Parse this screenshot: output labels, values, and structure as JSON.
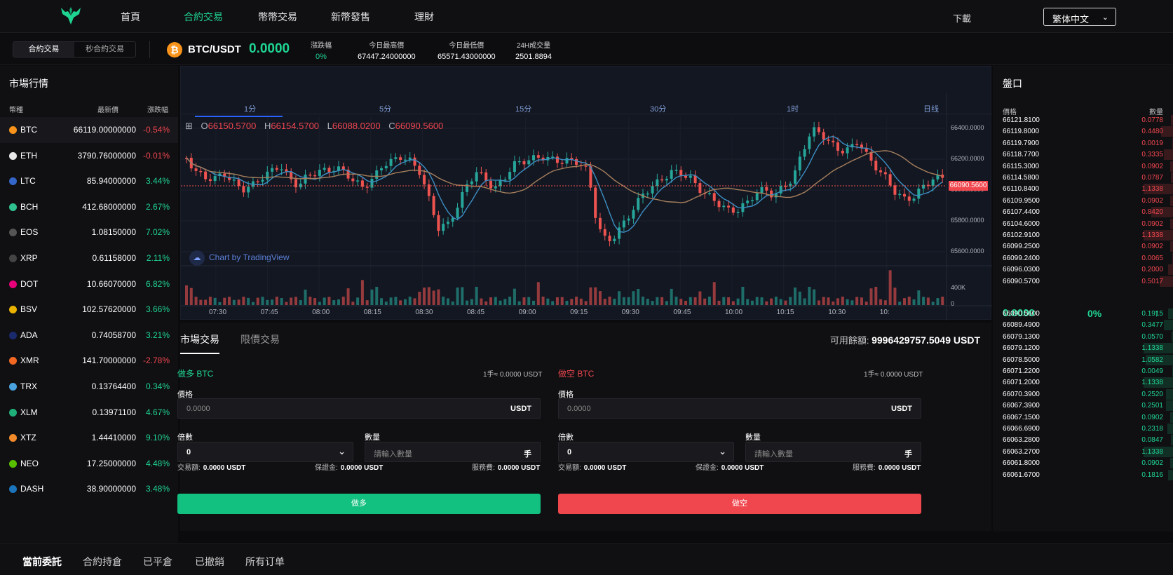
{
  "nav": {
    "items": [
      "首頁",
      "合約交易",
      "幣幣交易",
      "新幣發售",
      "理財"
    ],
    "active": 1,
    "download": "下載",
    "language": "繁体中文"
  },
  "ticker": {
    "modes": [
      "合約交易",
      "秒合約交易"
    ],
    "pair": "BTC/USDT",
    "coin_letter": "₿",
    "last_price": "0.0000",
    "change_label": "漲跌幅",
    "change_value": "0%",
    "high_label": "今日最高價",
    "high_value": "67447.24000000",
    "low_label": "今日最低價",
    "low_value": "65571.43000000",
    "vol_label": "24H成交量",
    "vol_value": "2501.8894"
  },
  "market": {
    "title": "市場行情",
    "headers": [
      "幣種",
      "最新價",
      "漲跌幅"
    ],
    "rows": [
      {
        "sym": "BTC",
        "price": "66119.00000000",
        "change": "-0.54%",
        "dir": "dn",
        "color": "#f7931a"
      },
      {
        "sym": "ETH",
        "price": "3790.76000000",
        "change": "-0.01%",
        "dir": "dn",
        "color": "#e8e8e8"
      },
      {
        "sym": "LTC",
        "price": "85.94000000",
        "change": "3.44%",
        "dir": "up",
        "color": "#3466c9"
      },
      {
        "sym": "BCH",
        "price": "412.68000000",
        "change": "2.67%",
        "dir": "up",
        "color": "#2fc28f"
      },
      {
        "sym": "EOS",
        "price": "1.08150000",
        "change": "7.02%",
        "dir": "up",
        "color": "#555555"
      },
      {
        "sym": "XRP",
        "price": "0.61158000",
        "change": "2.11%",
        "dir": "up",
        "color": "#444444"
      },
      {
        "sym": "DOT",
        "price": "10.66070000",
        "change": "6.82%",
        "dir": "up",
        "color": "#e6007a"
      },
      {
        "sym": "BSV",
        "price": "102.57620000",
        "change": "3.66%",
        "dir": "up",
        "color": "#eab300"
      },
      {
        "sym": "ADA",
        "price": "0.74058700",
        "change": "3.21%",
        "dir": "up",
        "color": "#1a2a6c"
      },
      {
        "sym": "XMR",
        "price": "141.70000000",
        "change": "-2.78%",
        "dir": "dn",
        "color": "#f26822"
      },
      {
        "sym": "TRX",
        "price": "0.13764400",
        "change": "0.34%",
        "dir": "up",
        "color": "#4aa3df"
      },
      {
        "sym": "XLM",
        "price": "0.13971100",
        "change": "4.67%",
        "dir": "up",
        "color": "#1fb07a"
      },
      {
        "sym": "XTZ",
        "price": "1.44410000",
        "change": "9.10%",
        "dir": "up",
        "color": "#f28a2a"
      },
      {
        "sym": "NEO",
        "price": "17.25000000",
        "change": "4.48%",
        "dir": "up",
        "color": "#58bf00"
      },
      {
        "sym": "DASH",
        "price": "38.90000000",
        "change": "3.48%",
        "dir": "up",
        "color": "#1c75bc"
      }
    ]
  },
  "chart": {
    "timeframes": [
      "1分",
      "5分",
      "15分",
      "30分",
      "1时",
      "日线"
    ],
    "ohlc": {
      "o": "66150.5700",
      "h": "66154.5700",
      "l": "66088.0200",
      "c": "66090.5600"
    },
    "ohlc_prefix": {
      "o": "O",
      "h": "H",
      "l": "L",
      "c": "C"
    },
    "watermark": "Chart by TradingView",
    "y_labels": [
      "66400.0000",
      "66200.0000",
      "66000.0000",
      "65800.0000",
      "65600.0000"
    ],
    "current_price": "66090.5600",
    "vol_labels": [
      "400K",
      "0"
    ],
    "x_labels": [
      "07:30",
      "07:45",
      "08:00",
      "08:15",
      "08:30",
      "08:45",
      "09:00",
      "09:15",
      "09:30",
      "09:45",
      "10:00",
      "10:15",
      "10:30",
      "10:"
    ]
  },
  "trade": {
    "tabs": [
      "市場交易",
      "限價交易"
    ],
    "avail_label": "可用餘額:",
    "avail_value": "9996429757.5049 USDT",
    "buy": {
      "title": "做多 BTC",
      "per_lot": "1手≈ 0.0000 USDT",
      "price_label": "價格",
      "price_value": "0.0000",
      "price_unit": "USDT",
      "mult_label": "倍數",
      "mult_value": "0",
      "qty_label": "數量",
      "qty_placeholder": "請輸入數量",
      "qty_unit": "手",
      "amount_label": "交易額:",
      "amount_value": "0.0000 USDT",
      "margin_label": "保證金:",
      "margin_value": "0.0000 USDT",
      "fee_label": "服務費:",
      "fee_value": "0.0000 USDT",
      "button": "做多"
    },
    "sell": {
      "title": "做空 BTC",
      "per_lot": "1手≈ 0.0000 USDT",
      "price_label": "價格",
      "price_value": "0.0000",
      "price_unit": "USDT",
      "mult_label": "倍數",
      "mult_value": "0",
      "qty_label": "數量",
      "qty_placeholder": "請輸入數量",
      "qty_unit": "手",
      "amount_label": "交易額:",
      "amount_value": "0.0000 USDT",
      "margin_label": "保證金:",
      "margin_value": "0.0000 USDT",
      "fee_label": "服務費:",
      "fee_value": "0.0000 USDT",
      "button": "做空"
    }
  },
  "book": {
    "title": "盤口",
    "headers": [
      "價格",
      "數量"
    ],
    "asks": [
      {
        "p": "66121.8100",
        "q": "0.0778",
        "d": 0.05
      },
      {
        "p": "66119.8000",
        "q": "0.4480",
        "d": 0.28
      },
      {
        "p": "66119.7900",
        "q": "0.0019",
        "d": 0.01
      },
      {
        "p": "66118.7700",
        "q": "0.3335",
        "d": 0.21
      },
      {
        "p": "66115.3000",
        "q": "0.0902",
        "d": 0.06
      },
      {
        "p": "66114.5800",
        "q": "0.0787",
        "d": 0.05
      },
      {
        "p": "66110.8400",
        "q": "1.1338",
        "d": 0.7
      },
      {
        "p": "66109.9500",
        "q": "0.0902",
        "d": 0.06
      },
      {
        "p": "66107.4400",
        "q": "0.8420",
        "d": 0.52
      },
      {
        "p": "66104.6000",
        "q": "0.0902",
        "d": 0.06
      },
      {
        "p": "66102.9100",
        "q": "1.1338",
        "d": 0.7
      },
      {
        "p": "66099.2500",
        "q": "0.0902",
        "d": 0.06
      },
      {
        "p": "66099.2400",
        "q": "0.0065",
        "d": 0.01
      },
      {
        "p": "66096.0300",
        "q": "0.2000",
        "d": 0.12
      },
      {
        "p": "66090.5700",
        "q": "0.5017",
        "d": 0.31
      }
    ],
    "mid_price": "0.0000",
    "mid_change": "0%",
    "mid_arrow": "↑",
    "bids": [
      {
        "p": "66090.5600",
        "q": "0.1915",
        "d": 0.12
      },
      {
        "p": "66089.4900",
        "q": "0.3477",
        "d": 0.22
      },
      {
        "p": "66079.1300",
        "q": "0.0570",
        "d": 0.04
      },
      {
        "p": "66079.1200",
        "q": "1.1338",
        "d": 0.7
      },
      {
        "p": "66078.5000",
        "q": "1.0582",
        "d": 0.65
      },
      {
        "p": "66071.2200",
        "q": "0.0049",
        "d": 0.01
      },
      {
        "p": "66071.2000",
        "q": "1.1338",
        "d": 0.7
      },
      {
        "p": "66070.3900",
        "q": "0.2520",
        "d": 0.16
      },
      {
        "p": "66067.3900",
        "q": "0.2501",
        "d": 0.16
      },
      {
        "p": "66067.1500",
        "q": "0.0902",
        "d": 0.06
      },
      {
        "p": "66066.6900",
        "q": "0.2318",
        "d": 0.14
      },
      {
        "p": "66063.2800",
        "q": "0.0847",
        "d": 0.05
      },
      {
        "p": "66063.2700",
        "q": "1.1338",
        "d": 0.7
      },
      {
        "p": "66061.8000",
        "q": "0.0902",
        "d": 0.06
      },
      {
        "p": "66061.6700",
        "q": "0.1816",
        "d": 0.11
      }
    ]
  },
  "orders": {
    "tabs": [
      "當前委託",
      "合約持倉",
      "已平倉",
      "已撤銷",
      "所有订单"
    ]
  },
  "colors": {
    "up": "#1fd592",
    "down": "#f0464e",
    "accent": "#2962ff"
  }
}
